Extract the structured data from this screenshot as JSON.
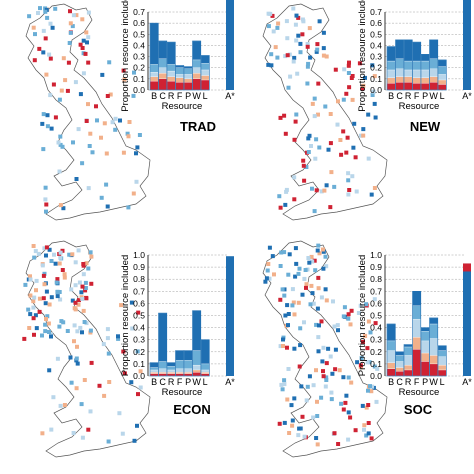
{
  "colors": {
    "dark_blue": "#1f6fb2",
    "mid_blue": "#6aaed6",
    "light_blue": "#b9d6ea",
    "peach": "#f2b08a",
    "red": "#cf2233",
    "map_outline": "#555555",
    "grid": "#888888"
  },
  "y_axis_label": "Proportion resource included",
  "x_axis_label": "Resource",
  "extra_category": "A*",
  "chart_data": [
    {
      "type": "bar",
      "panel": "TRAD",
      "title": "TRAD",
      "categories": [
        "B",
        "C",
        "R",
        "F",
        "P",
        "W",
        "L"
      ],
      "ylim": [
        0,
        1.0
      ],
      "yticks": [
        "0.0",
        "0.1",
        "0.2",
        "0.3",
        "0.4",
        "0.5",
        "0.6",
        "0.7"
      ],
      "stack_order": [
        "red",
        "peach",
        "light_blue",
        "mid_blue",
        "dark_blue"
      ],
      "stacks": [
        [
          0.08,
          0.04,
          0.04,
          0.07,
          0.37
        ],
        [
          0.1,
          0.05,
          0.05,
          0.08,
          0.16
        ],
        [
          0.08,
          0.04,
          0.05,
          0.06,
          0.2
        ],
        [
          0.07,
          0.04,
          0.03,
          0.06,
          0.02
        ],
        [
          0.07,
          0.03,
          0.04,
          0.05,
          0.02
        ],
        [
          0.1,
          0.05,
          0.05,
          0.07,
          0.17
        ],
        [
          0.09,
          0.04,
          0.05,
          0.06,
          0.07
        ]
      ],
      "a_star": 1.0
    },
    {
      "type": "bar",
      "panel": "NEW",
      "title": "NEW",
      "categories": [
        "B",
        "C",
        "R",
        "F",
        "P",
        "W",
        "L"
      ],
      "ylim": [
        0,
        1.0
      ],
      "yticks": [
        "0.0",
        "0.1",
        "0.2",
        "0.3",
        "0.4",
        "0.5",
        "0.6",
        "0.7"
      ],
      "stack_order": [
        "red",
        "peach",
        "light_blue",
        "mid_blue",
        "dark_blue"
      ],
      "stacks": [
        [
          0.06,
          0.05,
          0.07,
          0.08,
          0.13
        ],
        [
          0.07,
          0.05,
          0.07,
          0.09,
          0.17
        ],
        [
          0.07,
          0.05,
          0.06,
          0.08,
          0.19
        ],
        [
          0.06,
          0.05,
          0.07,
          0.08,
          0.17
        ],
        [
          0.06,
          0.05,
          0.07,
          0.08,
          0.06
        ],
        [
          0.07,
          0.05,
          0.07,
          0.09,
          0.17
        ],
        [
          0.05,
          0.04,
          0.05,
          0.07,
          0.06
        ]
      ],
      "a_star": 1.0
    },
    {
      "type": "bar",
      "panel": "ECON",
      "title": "ECON",
      "categories": [
        "B",
        "C",
        "R",
        "F",
        "P",
        "W",
        "L"
      ],
      "ylim": [
        0,
        1.0
      ],
      "yticks": [
        "0.0",
        "0.1",
        "0.2",
        "0.3",
        "0.4",
        "0.5",
        "0.6",
        "0.7",
        "0.8",
        "0.9",
        "1.0"
      ],
      "stack_order": [
        "red",
        "peach",
        "light_blue",
        "mid_blue",
        "dark_blue"
      ],
      "stacks": [
        [
          0.02,
          0.01,
          0.02,
          0.02,
          0.04
        ],
        [
          0.02,
          0.01,
          0.03,
          0.06,
          0.4
        ],
        [
          0.02,
          0.01,
          0.02,
          0.03,
          0.03
        ],
        [
          0.02,
          0.01,
          0.03,
          0.07,
          0.08
        ],
        [
          0.02,
          0.01,
          0.03,
          0.07,
          0.08
        ],
        [
          0.03,
          0.02,
          0.04,
          0.12,
          0.33
        ],
        [
          0.02,
          0.01,
          0.02,
          0.05,
          0.2
        ]
      ],
      "a_star": 0.99
    },
    {
      "type": "bar",
      "panel": "SOC",
      "title": "SOC",
      "categories": [
        "B",
        "C",
        "R",
        "F",
        "P",
        "W",
        "L"
      ],
      "ylim": [
        0,
        1.0
      ],
      "yticks": [
        "0.0",
        "0.1",
        "0.2",
        "0.3",
        "0.4",
        "0.5",
        "0.6",
        "0.7",
        "0.8",
        "0.9",
        "1.0"
      ],
      "stack_order": [
        "red",
        "peach",
        "light_blue",
        "mid_blue",
        "dark_blue"
      ],
      "stacks": [
        [
          0.06,
          0.05,
          0.1,
          0.08,
          0.14
        ],
        [
          0.04,
          0.03,
          0.05,
          0.05,
          0.03
        ],
        [
          0.05,
          0.04,
          0.08,
          0.07,
          0.02
        ],
        [
          0.22,
          0.1,
          0.15,
          0.11,
          0.12
        ],
        [
          0.12,
          0.07,
          0.1,
          0.08,
          0.03
        ],
        [
          0.1,
          0.07,
          0.14,
          0.12,
          0.05
        ],
        [
          0.05,
          0.04,
          0.07,
          0.05,
          0.04
        ]
      ],
      "a_star": 0.93
    }
  ]
}
